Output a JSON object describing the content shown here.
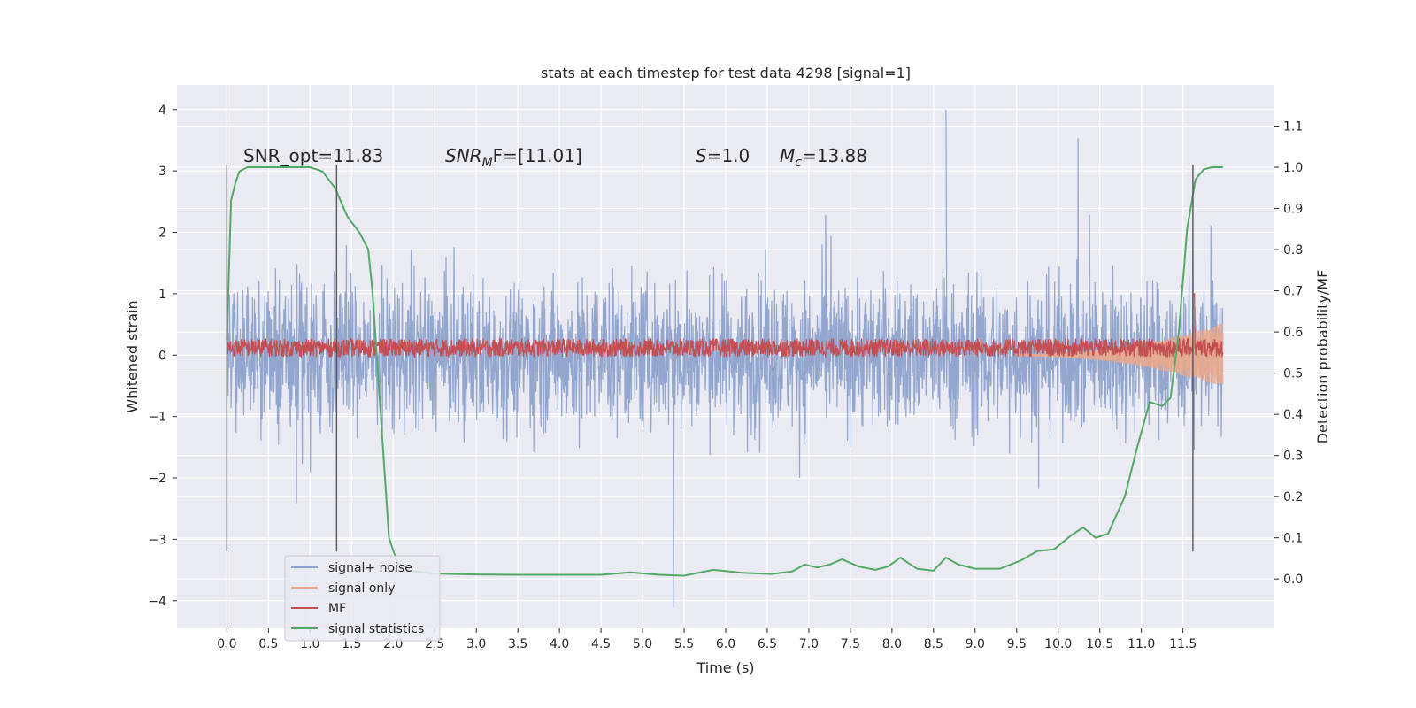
{
  "chart_data": {
    "type": "line",
    "title": "stats at each timestep for test data 4298 [signal=1]",
    "xlabel": "Time (s)",
    "ylabel": "Whitened strain",
    "y2label": "Detection probability/MF",
    "xlim": [
      -0.6,
      12.6
    ],
    "ylim": [
      -4.45,
      4.4
    ],
    "y2lim": [
      -0.12,
      1.2
    ],
    "x_ticks": [
      "0.0",
      "0.5",
      "1.0",
      "1.5",
      "2.0",
      "2.5",
      "3.0",
      "3.5",
      "4.0",
      "4.5",
      "5.0",
      "5.5",
      "6.0",
      "6.5",
      "7.0",
      "7.5",
      "8.0",
      "8.5",
      "9.0",
      "9.5",
      "10.0",
      "10.5",
      "11.0",
      "11.5"
    ],
    "y_ticks": [
      "4",
      "3",
      "2",
      "1",
      "0",
      "−1",
      "−2",
      "−3",
      "−4"
    ],
    "y2_ticks": [
      "1.1",
      "1.0",
      "0.9",
      "0.8",
      "0.7",
      "0.6",
      "0.5",
      "0.4",
      "0.3",
      "0.2",
      "0.1",
      "0.0"
    ],
    "grid": true,
    "legend_placement": "lower-left",
    "annotations": {
      "snr_opt": "SNR_opt=11.83",
      "snr_mf_italic": "SNR",
      "snr_mf_sub": "M",
      "snr_mf_rest": "F=[11.01]",
      "s_italic": "S",
      "s_rest": "=1.0",
      "mc_italic": "M",
      "mc_sub": "c",
      "mc_rest": "=13.88"
    },
    "vertical_lines": [
      0.0,
      1.32,
      11.62
    ],
    "series": [
      {
        "name": "signal+ noise",
        "color": "#8da2cc",
        "style": "noise",
        "x_range": [
          0.0,
          11.98
        ],
        "envelope": [
          1.8,
          2.4
        ],
        "extremes": [
          4.0,
          -4.1
        ]
      },
      {
        "name": "signal only",
        "color": "#eaa98c",
        "style": "chirp",
        "x_range": [
          9.5,
          11.98
        ],
        "peak_amplitude": 0.5
      },
      {
        "name": "MF",
        "color": "#c44e52",
        "style": "band",
        "center": 0.12,
        "amplitude": 0.15,
        "spike": {
          "x": 11.63,
          "y": 1.0
        }
      },
      {
        "name": "signal statistics",
        "color": "#55a868",
        "axis": "right",
        "x": [
          0.0,
          0.05,
          0.1,
          0.15,
          0.25,
          0.5,
          1.0,
          1.15,
          1.3,
          1.45,
          1.6,
          1.7,
          1.75,
          1.85,
          1.95,
          2.05,
          2.2,
          2.5,
          3.0,
          3.5,
          4.0,
          4.5,
          4.85,
          5.2,
          5.5,
          5.85,
          6.2,
          6.55,
          6.8,
          6.95,
          7.1,
          7.25,
          7.4,
          7.6,
          7.8,
          7.95,
          8.1,
          8.3,
          8.5,
          8.65,
          8.8,
          9.0,
          9.3,
          9.55,
          9.75,
          9.95,
          10.15,
          10.3,
          10.45,
          10.6,
          10.8,
          10.95,
          11.1,
          11.25,
          11.35,
          11.45,
          11.55,
          11.65,
          11.75,
          11.85,
          11.98
        ],
        "values": [
          0.58,
          0.92,
          0.96,
          0.99,
          1.0,
          1.0,
          1.0,
          0.99,
          0.95,
          0.88,
          0.84,
          0.8,
          0.7,
          0.4,
          0.1,
          0.04,
          0.02,
          0.013,
          0.011,
          0.01,
          0.01,
          0.01,
          0.016,
          0.01,
          0.008,
          0.022,
          0.015,
          0.012,
          0.018,
          0.035,
          0.028,
          0.035,
          0.048,
          0.03,
          0.022,
          0.03,
          0.052,
          0.025,
          0.02,
          0.052,
          0.035,
          0.025,
          0.025,
          0.045,
          0.068,
          0.072,
          0.105,
          0.125,
          0.1,
          0.11,
          0.2,
          0.32,
          0.43,
          0.42,
          0.44,
          0.6,
          0.85,
          0.97,
          0.995,
          1.0,
          1.0
        ]
      }
    ]
  }
}
